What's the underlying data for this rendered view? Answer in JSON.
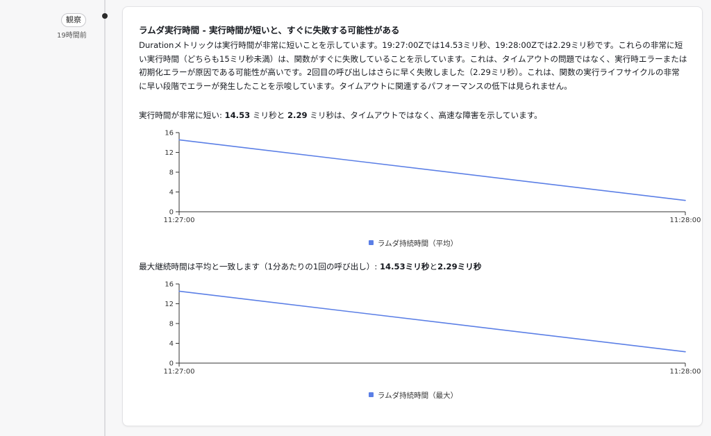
{
  "timeline": {
    "badge_label": "観察",
    "time_ago": "19時間前"
  },
  "card": {
    "title": "ラムダ実行時間 - 実行時間が短いと、すぐに失敗する可能性がある",
    "body": "Durationメトリックは実行時間が非常に短いことを示しています。19:27:00Zでは14.53ミリ秒、19:28:00Zでは2.29ミリ秒です。これらの非常に短い実行時間（どちらも15ミリ秒未満）は、関数がすぐに失敗していることを示しています。これは、タイムアウトの問題ではなく、実行時エラーまたは初期化エラーが原因である可能性が高いです。2回目の呼び出しはさらに早く失敗しました（2.29ミリ秒）。これは、関数の実行ライフサイクルの非常に早い段階でエラーが発生したことを示唆しています。タイムアウトに関連するパフォーマンスの低下は見られません。"
  },
  "chart1_heading": {
    "pre": "実行時間が非常に短い: ",
    "v1": "14.53",
    "mid": " ミリ秒と ",
    "v2": "2.29",
    "post": " ミリ秒は、タイムアウトではなく、高速な障害を示しています。"
  },
  "chart2_heading": {
    "pre": "最大継続時間は平均と一致します（1分あたりの1回の呼び出し）: ",
    "v1": "14.53ミリ秒",
    "mid": "と",
    "v2": "2.29ミリ秒"
  },
  "colors": {
    "series": "#5b7fe6",
    "axis": "#333333"
  },
  "chart_data": [
    {
      "type": "line",
      "x": [
        "11:27:00",
        "11:28:00"
      ],
      "series": [
        {
          "name": "ラムダ持続時間（平均）",
          "values": [
            14.53,
            2.29
          ]
        }
      ],
      "yticks": [
        0,
        4,
        8,
        12,
        16
      ],
      "ylim": [
        0,
        16
      ],
      "grid": false,
      "legend": "bottom-center"
    },
    {
      "type": "line",
      "x": [
        "11:27:00",
        "11:28:00"
      ],
      "series": [
        {
          "name": "ラムダ持続時間（最大）",
          "values": [
            14.53,
            2.29
          ]
        }
      ],
      "yticks": [
        0,
        4,
        8,
        12,
        16
      ],
      "ylim": [
        0,
        16
      ],
      "grid": false,
      "legend": "bottom-center"
    }
  ]
}
